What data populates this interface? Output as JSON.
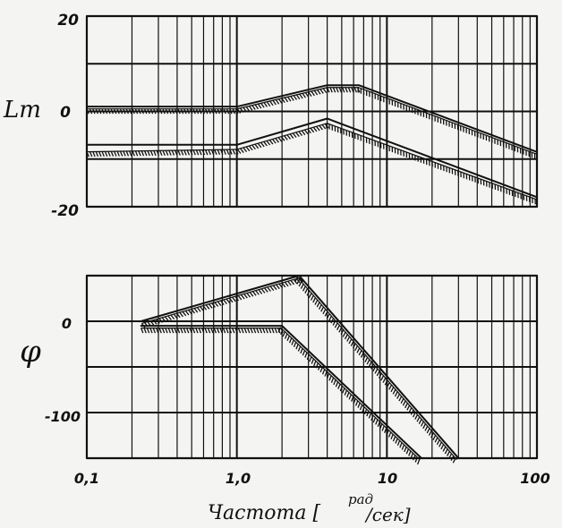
{
  "chart_data": [
    {
      "type": "line",
      "title": "",
      "ylabel": "Lm",
      "xscale": "log",
      "xlim": [
        0.1,
        100
      ],
      "ylim": [
        -20,
        20
      ],
      "ytick_labels": [
        "20",
        "0",
        "-20"
      ],
      "grid": true,
      "series": [
        {
          "style": "solid",
          "x": [
            0.1,
            1.0,
            4.0,
            6.5,
            100
          ],
          "y": [
            1,
            1,
            5.5,
            5.5,
            -8.5
          ]
        },
        {
          "style": "hatched",
          "x": [
            0.1,
            1.0,
            4.0,
            6.5,
            100
          ],
          "y": [
            1,
            1,
            5.5,
            5.5,
            -8.5
          ]
        },
        {
          "style": "solid",
          "x": [
            0.1,
            1.0,
            4.0,
            100
          ],
          "y": [
            -7,
            -7,
            -1.5,
            -18
          ]
        },
        {
          "style": "hatched",
          "x": [
            0.1,
            1.0,
            4.0,
            100
          ],
          "y": [
            -8,
            -7.5,
            -2,
            -18
          ]
        }
      ]
    },
    {
      "type": "line",
      "title": "",
      "ylabel": "φ",
      "xscale": "log",
      "xlim": [
        0.1,
        100
      ],
      "ylim": [
        -150,
        50
      ],
      "ytick_labels": [
        "0",
        "-100"
      ],
      "grid": true,
      "series": [
        {
          "style": "solid",
          "x": [
            0.23,
            2.6,
            30
          ],
          "y": [
            0,
            50,
            -150
          ]
        },
        {
          "style": "hatched",
          "x": [
            0.23,
            2.6,
            30
          ],
          "y": [
            0,
            50,
            -150
          ]
        },
        {
          "style": "solid",
          "x": [
            0.23,
            2.0,
            17
          ],
          "y": [
            -5,
            -5,
            -150
          ]
        },
        {
          "style": "hatched",
          "x": [
            0.23,
            2.0,
            17
          ],
          "y": [
            -5,
            -5,
            -150
          ]
        }
      ]
    }
  ],
  "x_axis": {
    "tick_labels": [
      "0,1",
      "1,0",
      "10",
      "100"
    ],
    "label_main": "Частота [",
    "label_unit_top": "рад",
    "label_unit_bottom": "/сек]"
  },
  "colors": {
    "ink": "#111111",
    "paper": "#f4f4f2"
  }
}
